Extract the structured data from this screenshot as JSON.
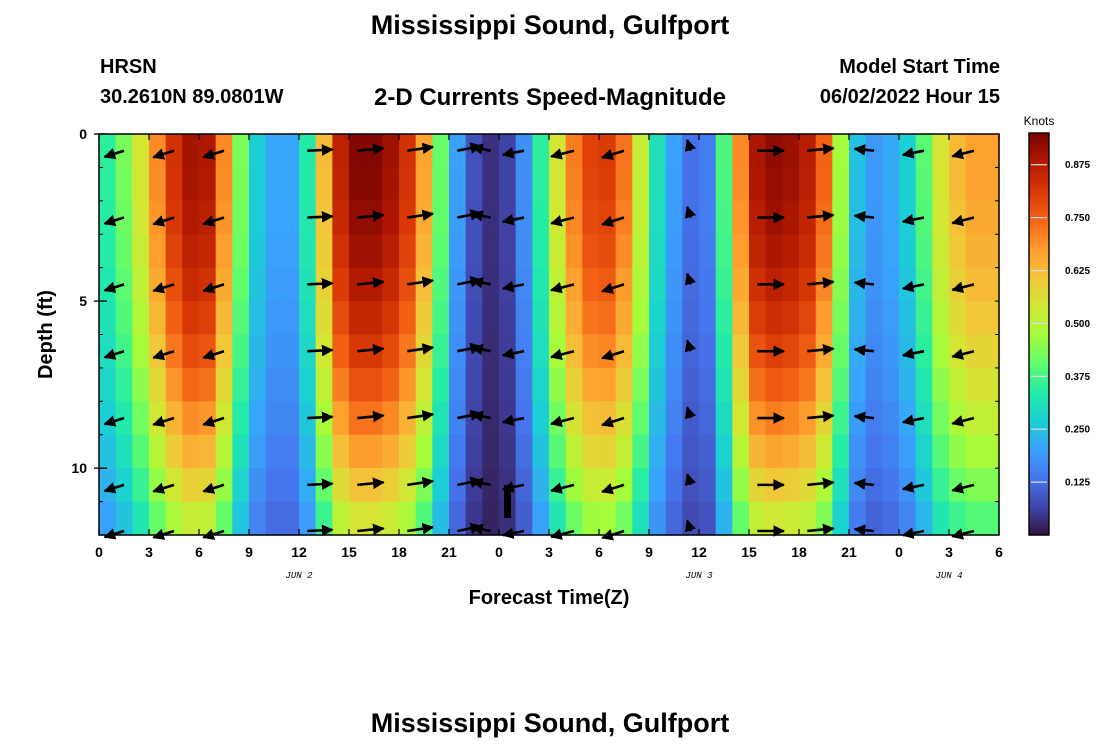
{
  "header": {
    "title": "Mississippi Sound, Gulfport",
    "station": "HRSN",
    "coords": "30.2610N  89.0801W",
    "subtitle": "2-D Currents Speed-Magnitude",
    "model_start_label": "Model Start Time",
    "model_start_value": "06/02/2022 Hour 15"
  },
  "footer": {
    "title": "Mississippi Sound, Gulfport"
  },
  "chart_data": {
    "type": "heatmap",
    "title": "2-D Currents Speed-Magnitude",
    "xlabel": "Forecast Time(Z)",
    "ylabel": "Depth (ft)",
    "x_range_hours": [
      0,
      54
    ],
    "y_range_ft": [
      0,
      12
    ],
    "x_tick_hours": [
      0,
      3,
      6,
      9,
      12,
      15,
      18,
      21,
      24,
      27,
      30,
      33,
      36,
      39,
      42,
      45,
      48,
      51,
      54
    ],
    "x_tick_labels": [
      "0",
      "3",
      "6",
      "9",
      "12",
      "15",
      "18",
      "21",
      "0",
      "3",
      "6",
      "9",
      "12",
      "15",
      "18",
      "21",
      "0",
      "3",
      "6"
    ],
    "y_tick_values": [
      0,
      5,
      10
    ],
    "y_tick_labels": [
      "0",
      "5",
      "10"
    ],
    "date_labels": [
      {
        "text": "JUN 2",
        "hour": 12
      },
      {
        "text": "JUN 3",
        "hour": 36
      },
      {
        "text": "JUN 4",
        "hour": 51
      }
    ],
    "depths_ft": [
      0,
      1,
      2,
      3,
      4,
      5,
      6,
      7,
      8,
      9,
      10,
      11,
      12
    ],
    "speed_profile": {
      "hours": [
        0,
        1,
        2,
        3,
        4,
        5,
        6,
        7,
        8,
        9,
        10,
        11,
        12,
        13,
        14,
        15,
        16,
        17,
        18,
        19,
        20,
        21,
        22,
        23,
        24,
        25,
        26,
        27,
        28,
        29,
        30,
        31,
        32,
        33,
        34,
        35,
        36,
        37,
        38,
        39,
        40,
        41,
        42,
        43,
        44,
        45,
        46,
        47,
        48,
        49,
        50,
        51,
        52,
        53,
        54
      ],
      "surface_knots": [
        0.32,
        0.38,
        0.48,
        0.62,
        0.78,
        0.88,
        0.92,
        0.85,
        0.55,
        0.32,
        0.22,
        0.2,
        0.22,
        0.45,
        0.8,
        0.93,
        0.95,
        0.93,
        0.88,
        0.78,
        0.55,
        0.28,
        0.12,
        0.05,
        0.03,
        0.1,
        0.25,
        0.45,
        0.65,
        0.78,
        0.82,
        0.8,
        0.65,
        0.4,
        0.22,
        0.18,
        0.08,
        0.22,
        0.55,
        0.85,
        0.93,
        0.92,
        0.9,
        0.85,
        0.65,
        0.3,
        0.2,
        0.18,
        0.25,
        0.3,
        0.5,
        0.6,
        0.66,
        0.68,
        0.66
      ],
      "bottom_factor": 0.55
    },
    "colorbar": {
      "title": "Knots",
      "min": 0.0,
      "max": 0.95,
      "ticks": [
        "0.875",
        "0.750",
        "0.625",
        "0.500",
        "0.375",
        "0.250",
        "0.125"
      ],
      "tick_values": [
        0.875,
        0.75,
        0.625,
        0.5,
        0.375,
        0.25,
        0.125
      ],
      "colors": [
        "#30123b",
        "#4145ab",
        "#4675ed",
        "#39a2fc",
        "#1bcfd4",
        "#24eca6",
        "#61fc6c",
        "#a4fc3b",
        "#d1e834",
        "#f3c63a",
        "#fe9b2d",
        "#f36315",
        "#d93806",
        "#b11901",
        "#7a0402"
      ]
    },
    "vectors": {
      "hours": [
        1.5,
        4.5,
        7.5,
        12.5,
        15.5,
        18.5,
        21.5,
        23.5,
        25.5,
        28.5,
        31.5,
        35.5,
        39.5,
        42.5,
        46.5,
        49.5,
        52.5
      ],
      "depths_ft": [
        0.5,
        2.5,
        4.5,
        6.5,
        8.5,
        10.5,
        12
      ],
      "direction_deg": [
        210,
        210,
        210,
        5,
        10,
        15,
        20,
        160,
        200,
        205,
        210,
        100,
        0,
        10,
        170,
        200,
        205
      ],
      "length_knots": [
        0.6,
        0.7,
        0.7,
        0.8,
        0.9,
        0.9,
        0.8,
        0.4,
        0.6,
        0.8,
        0.8,
        0.4,
        0.9,
        0.9,
        0.4,
        0.6,
        0.7
      ]
    }
  }
}
